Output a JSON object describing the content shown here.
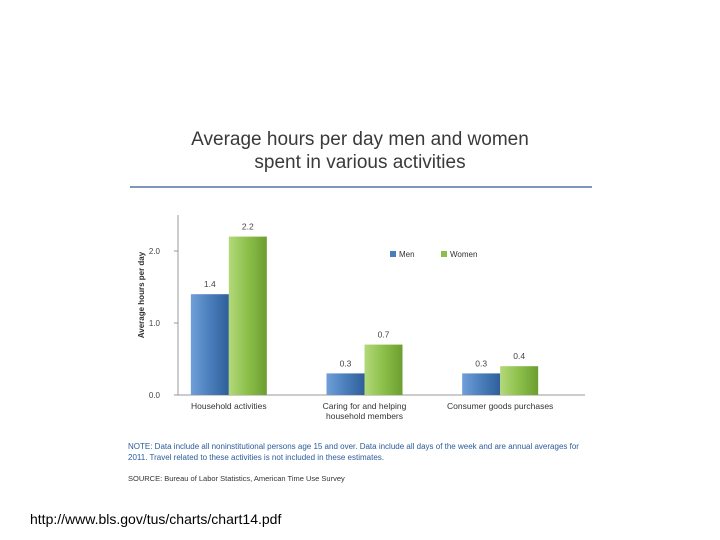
{
  "chart_data": {
    "type": "bar",
    "title_line1": "Average hours per day men and women",
    "title_line2": "spent in various activities",
    "ylabel": "Average hours per day",
    "xlabel": "",
    "ylim": [
      0,
      2.5
    ],
    "y_ticks": [
      "0.0",
      "1.0",
      "2.0"
    ],
    "y_tick_values": [
      0,
      1,
      2
    ],
    "categories": [
      [
        "Household activities"
      ],
      [
        "Caring for and helping",
        "household members"
      ],
      [
        "Consumer goods purchases"
      ]
    ],
    "series": [
      {
        "name": "Men",
        "values": [
          1.4,
          0.3,
          0.3
        ],
        "labels": [
          "1.4",
          "0.3",
          "0.3"
        ],
        "color": "#4a7ebb"
      },
      {
        "name": "Women",
        "values": [
          2.2,
          0.7,
          0.4
        ],
        "labels": [
          "2.2",
          "0.7",
          "0.4"
        ],
        "color": "#8cbf4a"
      }
    ],
    "legend_position": "top-right",
    "grid": false
  },
  "note": "NOTE: Data include all noninstitutional persons age 15 and over. Data include all days of the week and are annual averages for 2011. Travel related to these activities is not included in these estimates.",
  "source": "SOURCE: Bureau of Labor Statistics, American Time Use Survey",
  "url": "http://www.bls.gov/tus/charts/chart14.pdf"
}
